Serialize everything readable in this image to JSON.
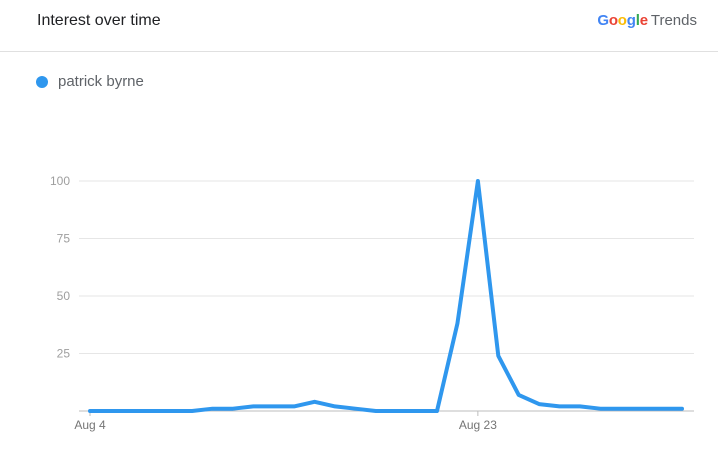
{
  "header": {
    "title": "Interest over time",
    "brand_google": "Google",
    "brand_trends": "Trends"
  },
  "colors": {
    "series": "#2f97ee",
    "google_blue": "#4285F4",
    "google_red": "#EA4335",
    "google_yellow": "#FBBC05",
    "google_green": "#34A853"
  },
  "chart_data": {
    "type": "line",
    "title": "",
    "xlabel": "",
    "ylabel": "",
    "ylim": [
      0,
      100
    ],
    "yticks": [
      25,
      50,
      75,
      100
    ],
    "grid": true,
    "legend": "top-left",
    "x_ticks": [
      {
        "index": 0,
        "label": "Aug 4"
      },
      {
        "index": 19,
        "label": "Aug 23"
      }
    ],
    "series": [
      {
        "name": "patrick byrne",
        "values": [
          0,
          0,
          0,
          0,
          0,
          0,
          1,
          1,
          2,
          2,
          2,
          4,
          2,
          1,
          0,
          0,
          0,
          0,
          38,
          100,
          24,
          7,
          3,
          2,
          2,
          1,
          1,
          1,
          1,
          1
        ]
      }
    ]
  }
}
